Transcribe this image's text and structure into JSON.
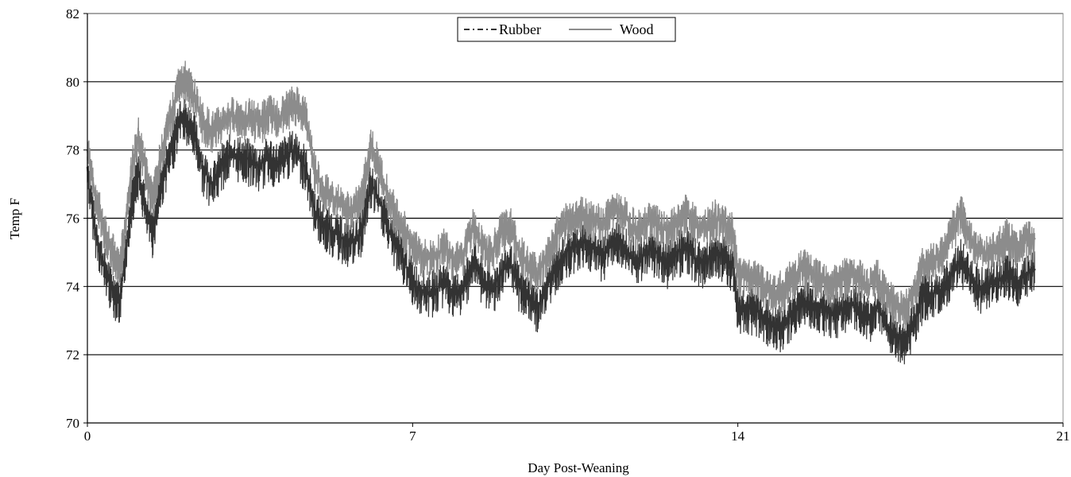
{
  "chart_data": {
    "type": "line",
    "title": "",
    "xlabel": "Day Post-Weaning",
    "ylabel": "Temp F",
    "xlim": [
      0,
      21
    ],
    "ylim": [
      70,
      82
    ],
    "xticks": [
      0,
      7,
      14,
      21
    ],
    "yticks": [
      70,
      72,
      74,
      76,
      78,
      80,
      82
    ],
    "grid": "horizontal",
    "legend_position": "top-center",
    "series": [
      {
        "name": "Rubber",
        "color": "#333333",
        "style": "dash-dot",
        "x": [
          0,
          0.15,
          0.35,
          0.55,
          0.7,
          0.8,
          0.95,
          1.1,
          1.25,
          1.4,
          1.55,
          1.7,
          1.85,
          2.0,
          2.15,
          2.3,
          2.5,
          2.7,
          2.9,
          3.1,
          3.3,
          3.5,
          3.7,
          3.9,
          4.1,
          4.3,
          4.5,
          4.7,
          4.9,
          5.1,
          5.3,
          5.5,
          5.7,
          5.9,
          6.1,
          6.3,
          6.5,
          6.7,
          6.9,
          7.1,
          7.3,
          7.5,
          7.7,
          7.9,
          8.1,
          8.3,
          8.5,
          8.7,
          8.9,
          9.1,
          9.3,
          9.5,
          9.7,
          9.9,
          10.1,
          10.3,
          10.5,
          10.7,
          10.9,
          11.1,
          11.3,
          11.5,
          11.7,
          11.9,
          12.1,
          12.3,
          12.5,
          12.7,
          12.9,
          13.1,
          13.3,
          13.5,
          13.7,
          13.9,
          14.0,
          14.2,
          14.4,
          14.6,
          14.8,
          15.0,
          15.2,
          15.4,
          15.6,
          15.8,
          16.0,
          16.2,
          16.4,
          16.6,
          16.8,
          17.0,
          17.2,
          17.4,
          17.6,
          17.8,
          18.0,
          18.2,
          18.4,
          18.6,
          18.8,
          19.0,
          19.2,
          19.4,
          19.6,
          19.8,
          20.0,
          20.2,
          20.4
        ],
        "values": [
          77.5,
          75.8,
          74.6,
          73.9,
          73.6,
          74.8,
          76.5,
          77.4,
          76.3,
          75.6,
          76.8,
          77.6,
          78.2,
          79.1,
          78.8,
          78.5,
          77.4,
          77.0,
          77.6,
          77.9,
          77.8,
          77.7,
          77.5,
          77.8,
          77.6,
          77.9,
          78.0,
          77.5,
          76.2,
          75.8,
          75.6,
          75.4,
          75.3,
          75.6,
          77.0,
          76.5,
          75.6,
          75.1,
          74.5,
          74.0,
          73.8,
          73.9,
          74.2,
          73.7,
          74.0,
          74.8,
          74.2,
          73.9,
          74.4,
          74.7,
          74.0,
          73.7,
          73.4,
          74.0,
          74.6,
          75.0,
          75.2,
          75.3,
          75.1,
          74.9,
          75.4,
          75.3,
          74.9,
          74.8,
          75.1,
          74.9,
          74.7,
          75.0,
          75.2,
          74.8,
          74.7,
          75.1,
          74.9,
          74.6,
          73.4,
          73.4,
          73.3,
          73.1,
          72.8,
          72.9,
          73.3,
          73.6,
          73.5,
          73.4,
          73.2,
          73.3,
          73.5,
          73.4,
          73.1,
          73.4,
          72.9,
          72.5,
          72.5,
          73.0,
          73.8,
          73.8,
          73.9,
          74.4,
          74.8,
          74.3,
          74.0,
          74.0,
          74.2,
          74.4,
          74.1,
          74.4,
          74.5
        ]
      },
      {
        "name": "Wood",
        "color": "#8c8c8c",
        "style": "solid",
        "x": [
          0,
          0.15,
          0.35,
          0.55,
          0.7,
          0.8,
          0.95,
          1.1,
          1.25,
          1.4,
          1.55,
          1.7,
          1.85,
          2.0,
          2.15,
          2.3,
          2.5,
          2.7,
          2.9,
          3.1,
          3.3,
          3.5,
          3.7,
          3.9,
          4.1,
          4.3,
          4.5,
          4.7,
          4.9,
          5.1,
          5.3,
          5.5,
          5.7,
          5.9,
          6.1,
          6.3,
          6.5,
          6.7,
          6.9,
          7.1,
          7.3,
          7.5,
          7.7,
          7.9,
          8.1,
          8.3,
          8.5,
          8.7,
          8.9,
          9.1,
          9.3,
          9.5,
          9.7,
          9.9,
          10.1,
          10.3,
          10.5,
          10.7,
          10.9,
          11.1,
          11.3,
          11.5,
          11.7,
          11.9,
          12.1,
          12.3,
          12.5,
          12.7,
          12.9,
          13.1,
          13.3,
          13.5,
          13.7,
          13.9,
          14.0,
          14.2,
          14.4,
          14.6,
          14.8,
          15.0,
          15.2,
          15.4,
          15.6,
          15.8,
          16.0,
          16.2,
          16.4,
          16.6,
          16.8,
          17.0,
          17.2,
          17.4,
          17.6,
          17.8,
          18.0,
          18.2,
          18.4,
          18.6,
          18.8,
          19.0,
          19.2,
          19.4,
          19.6,
          19.8,
          20.0,
          20.2,
          20.4
        ],
        "values": [
          78.0,
          76.8,
          75.8,
          75.0,
          74.6,
          75.6,
          77.4,
          78.4,
          77.5,
          76.6,
          77.6,
          78.6,
          79.2,
          80.2,
          80.0,
          79.6,
          78.8,
          78.6,
          78.8,
          79.0,
          79.0,
          79.0,
          78.8,
          79.1,
          78.9,
          79.2,
          79.4,
          79.0,
          77.4,
          76.8,
          76.6,
          76.3,
          76.2,
          76.6,
          78.2,
          77.4,
          76.5,
          76.0,
          75.5,
          75.1,
          74.8,
          74.9,
          75.2,
          74.8,
          75.0,
          75.8,
          75.2,
          75.0,
          75.6,
          75.8,
          75.0,
          74.6,
          74.4,
          75.0,
          75.5,
          75.9,
          76.1,
          76.1,
          76.0,
          75.8,
          76.3,
          76.2,
          75.8,
          75.7,
          76.0,
          75.8,
          75.6,
          75.9,
          76.2,
          75.8,
          75.7,
          76.0,
          75.9,
          75.6,
          74.3,
          74.3,
          74.2,
          74.0,
          73.8,
          74.0,
          74.3,
          74.6,
          74.4,
          74.3,
          74.1,
          74.2,
          74.4,
          74.3,
          74.0,
          74.3,
          73.8,
          73.4,
          73.4,
          73.9,
          74.7,
          74.8,
          75.0,
          75.6,
          76.2,
          75.4,
          75.0,
          75.0,
          75.2,
          75.5,
          75.1,
          75.4,
          75.4
        ]
      }
    ]
  }
}
